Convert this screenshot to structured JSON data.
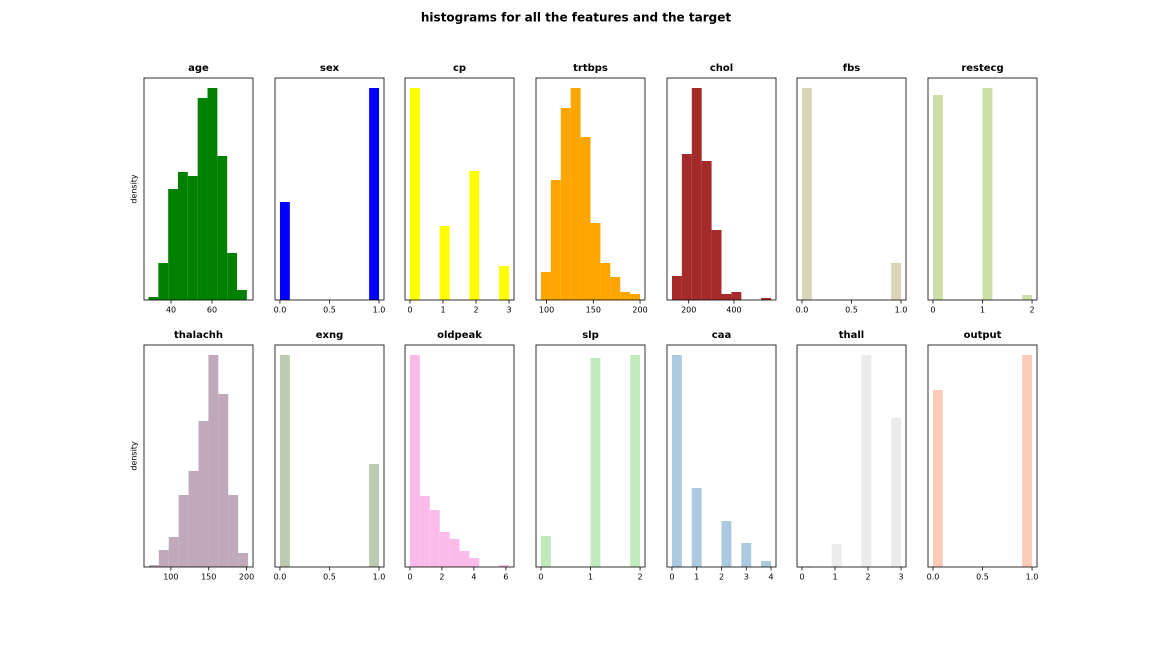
{
  "title": "histograms for all the features and the target",
  "chart_data": [
    {
      "type": "histogram",
      "title": "age",
      "ylabel": "density",
      "color": "#008000",
      "bins": [
        29,
        33.8,
        38.6,
        43.4,
        48.2,
        53,
        57.8,
        62.6,
        67.4,
        72.2,
        77
      ],
      "values": [
        3,
        37,
        111,
        128,
        124,
        202,
        212,
        144,
        47,
        10
      ],
      "xlim": [
        26.8,
        80
      ],
      "xticks": [
        40,
        60
      ],
      "ylim": [
        0,
        222
      ]
    },
    {
      "type": "histogram",
      "title": "sex",
      "color": "#0000ff",
      "bins": [
        0,
        0.1,
        0.2,
        0.3,
        0.4,
        0.5,
        0.6,
        0.7,
        0.8,
        0.9,
        1
      ],
      "values": [
        98,
        0,
        0,
        0,
        0,
        0,
        0,
        0,
        0,
        212
      ],
      "xlim": [
        -0.05,
        1.05
      ],
      "xticks": [
        {
          "value": 0,
          "label": "0.0"
        },
        0.5,
        {
          "value": 1,
          "label": "1.0"
        }
      ],
      "ylim": [
        0,
        222
      ]
    },
    {
      "type": "histogram",
      "title": "cp",
      "color": "#ffff00",
      "bins": [
        0,
        0.3,
        0.6,
        0.9,
        1.2,
        1.5,
        1.8,
        2.1,
        2.4,
        2.7,
        3
      ],
      "values": [
        212,
        0,
        0,
        74,
        0,
        0,
        129,
        0,
        0,
        34
      ],
      "xlim": [
        -0.15,
        3.15
      ],
      "xticks": [
        0,
        1,
        2,
        3
      ],
      "ylim": [
        0,
        222
      ]
    },
    {
      "type": "histogram",
      "title": "trtbps",
      "color": "#ffa500",
      "bins": [
        94,
        104.6,
        115.2,
        125.8,
        136.4,
        147,
        157.6,
        168.2,
        178.8,
        189.4,
        200
      ],
      "values": [
        28,
        120,
        192,
        212,
        163,
        77,
        37,
        23,
        8,
        6
      ],
      "xlim": [
        88.7,
        205.3
      ],
      "xticks": [
        100,
        150,
        200
      ],
      "ylim": [
        0,
        222
      ]
    },
    {
      "type": "histogram",
      "title": "chol",
      "color": "#a52a2a",
      "bins": [
        126,
        169.8,
        213.6,
        257.4,
        301.2,
        345,
        388.8,
        432.6,
        476.4,
        520.2,
        564
      ],
      "values": [
        24,
        146,
        212,
        139,
        70,
        6,
        8,
        0,
        0,
        2
      ],
      "xlim": [
        104,
        586
      ],
      "xticks": [
        200,
        400
      ],
      "ylim": [
        0,
        222
      ]
    },
    {
      "type": "histogram",
      "title": "fbs",
      "color": "#d9d5b7",
      "bins": [
        0,
        0.1,
        0.2,
        0.3,
        0.4,
        0.5,
        0.6,
        0.7,
        0.8,
        0.9,
        1
      ],
      "values": [
        212,
        0,
        0,
        0,
        0,
        0,
        0,
        0,
        0,
        37
      ],
      "xlim": [
        -0.05,
        1.05
      ],
      "xticks": [
        {
          "value": 0,
          "label": "0.0"
        },
        0.5,
        {
          "value": 1,
          "label": "1.0"
        }
      ],
      "ylim": [
        0,
        222
      ]
    },
    {
      "type": "histogram",
      "title": "restecg",
      "color": "#cddfa8",
      "bins": [
        0,
        0.2,
        0.4,
        0.6,
        0.8,
        1,
        1.2,
        1.4,
        1.6,
        1.8,
        2
      ],
      "values": [
        205,
        0,
        0,
        0,
        0,
        212,
        0,
        0,
        0,
        5
      ],
      "xlim": [
        -0.1,
        2.1
      ],
      "xticks": [
        0,
        1,
        2
      ],
      "ylim": [
        0,
        222
      ]
    },
    {
      "type": "histogram",
      "title": "thalachh",
      "ylabel": "density",
      "color": "#bfa9bb",
      "bins": [
        71,
        84.1,
        97.2,
        110.3,
        123.4,
        136.5,
        149.6,
        162.7,
        175.8,
        188.9,
        202
      ],
      "values": [
        2,
        17,
        30,
        72,
        96,
        146,
        212,
        173,
        72,
        14
      ],
      "xlim": [
        64.5,
        208.5
      ],
      "xticks": [
        100,
        150,
        200
      ],
      "ylim": [
        0,
        222
      ]
    },
    {
      "type": "histogram",
      "title": "exng",
      "color": "#bccbb0",
      "bins": [
        0,
        0.1,
        0.2,
        0.3,
        0.4,
        0.5,
        0.6,
        0.7,
        0.8,
        0.9,
        1
      ],
      "values": [
        212,
        0,
        0,
        0,
        0,
        0,
        0,
        0,
        0,
        103
      ],
      "xlim": [
        -0.05,
        1.05
      ],
      "xticks": [
        {
          "value": 0,
          "label": "0.0"
        },
        0.5,
        {
          "value": 1,
          "label": "1.0"
        }
      ],
      "ylim": [
        0,
        222
      ]
    },
    {
      "type": "histogram",
      "title": "oldpeak",
      "color": "#fbbbea",
      "bins": [
        0,
        0.62,
        1.24,
        1.86,
        2.48,
        3.1,
        3.72,
        4.34,
        4.96,
        5.58,
        6.2
      ],
      "values": [
        212,
        71,
        57,
        35,
        28,
        16,
        9,
        0,
        0,
        2
      ],
      "xlim": [
        -0.31,
        6.51
      ],
      "xticks": [
        0,
        2,
        4,
        6
      ],
      "ylim": [
        0,
        222
      ]
    },
    {
      "type": "histogram",
      "title": "slp",
      "color": "#c0ecbd",
      "bins": [
        0,
        0.2,
        0.4,
        0.6,
        0.8,
        1,
        1.2,
        1.4,
        1.6,
        1.8,
        2
      ],
      "values": [
        31,
        0,
        0,
        0,
        0,
        209,
        0,
        0,
        0,
        212
      ],
      "xlim": [
        -0.1,
        2.1
      ],
      "xticks": [
        0,
        1,
        2
      ],
      "ylim": [
        0,
        222
      ]
    },
    {
      "type": "histogram",
      "title": "caa",
      "color": "#abcadf",
      "bins": [
        0,
        0.4,
        0.8,
        1.2,
        1.6,
        2,
        2.4,
        2.8,
        3.2,
        3.6,
        4
      ],
      "values": [
        212,
        0,
        79,
        0,
        0,
        46,
        0,
        24,
        0,
        6
      ],
      "xlim": [
        -0.2,
        4.2
      ],
      "xticks": [
        0,
        1,
        2,
        3,
        4
      ],
      "ylim": [
        0,
        222
      ]
    },
    {
      "type": "histogram",
      "title": "thall",
      "color": "#ebebeb",
      "bins": [
        0,
        0.3,
        0.6,
        0.9,
        1.2,
        1.5,
        1.8,
        2.1,
        2.4,
        2.7,
        3
      ],
      "values": [
        1,
        0,
        0,
        23,
        0,
        0,
        212,
        0,
        0,
        149
      ],
      "xlim": [
        -0.15,
        3.15
      ],
      "xticks": [
        0,
        1,
        2,
        3
      ],
      "ylim": [
        0,
        222
      ]
    },
    {
      "type": "histogram",
      "title": "output",
      "color": "#fecbb9",
      "bins": [
        0,
        0.1,
        0.2,
        0.3,
        0.4,
        0.5,
        0.6,
        0.7,
        0.8,
        0.9,
        1
      ],
      "values": [
        177,
        0,
        0,
        0,
        0,
        0,
        0,
        0,
        0,
        212
      ],
      "xlim": [
        -0.05,
        1.05
      ],
      "xticks": [
        {
          "value": 0,
          "label": "0.0"
        },
        0.5,
        {
          "value": 1,
          "label": "1.0"
        }
      ],
      "ylim": [
        0,
        222
      ]
    }
  ]
}
